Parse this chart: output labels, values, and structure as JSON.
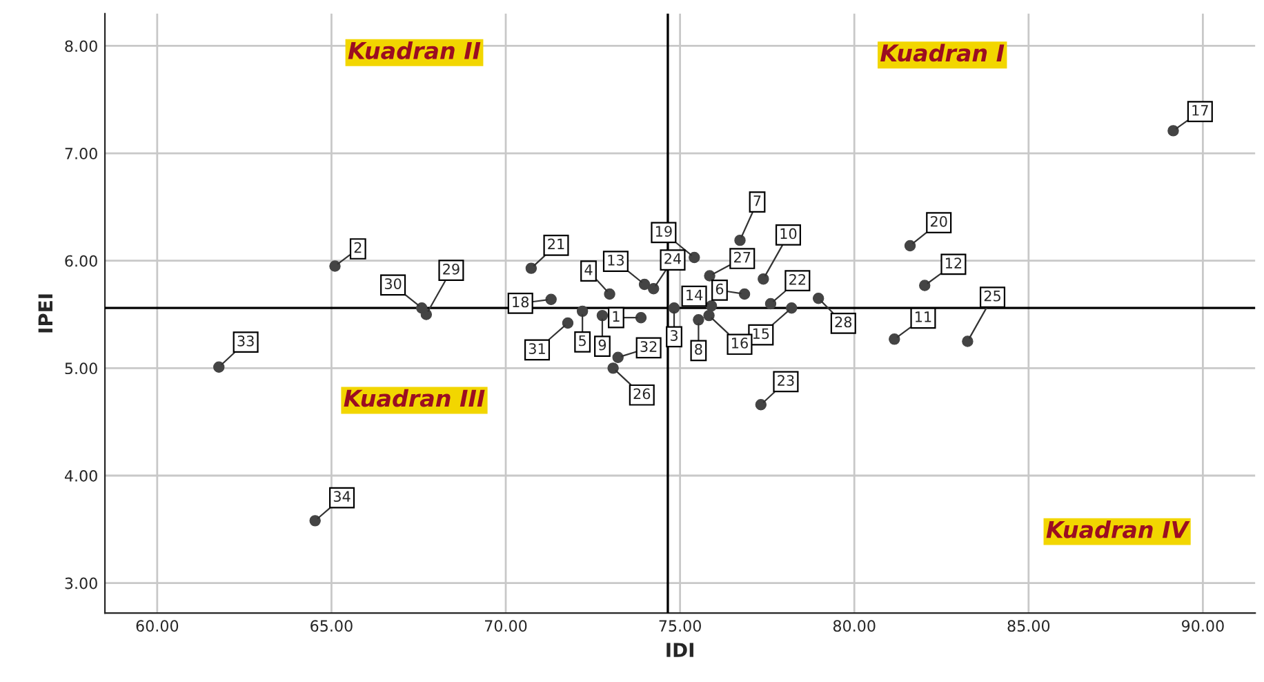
{
  "chart_data": {
    "type": "scatter",
    "xlabel": "IDI",
    "ylabel": "IPEI",
    "x": [
      73.88,
      65.1,
      74.83,
      72.98,
      72.2,
      76.85,
      76.72,
      75.53,
      72.77,
      77.39,
      81.15,
      82.02,
      73.98,
      75.9,
      78.2,
      75.83,
      89.15,
      71.3,
      75.41,
      81.6,
      70.73,
      77.6,
      77.32,
      74.24,
      83.25,
      73.08,
      75.85,
      78.97,
      67.72,
      67.59,
      71.78,
      73.22,
      61.77,
      64.53
    ],
    "values": [
      5.47,
      5.95,
      5.56,
      5.69,
      5.53,
      5.69,
      6.19,
      5.45,
      5.49,
      5.83,
      5.27,
      5.77,
      5.78,
      5.58,
      5.56,
      5.49,
      7.21,
      5.64,
      6.03,
      6.14,
      5.93,
      5.6,
      4.66,
      5.74,
      5.25,
      5.0,
      5.86,
      5.65,
      5.5,
      5.56,
      5.42,
      5.1,
      5.01,
      3.58
    ],
    "color": "#444444",
    "marker": "circle",
    "xlim": [
      58.5,
      91.5
    ],
    "ylim": [
      2.72,
      8.3
    ],
    "xticks": [
      {
        "value": 60,
        "label": "60.00"
      },
      {
        "value": 65,
        "label": "65.00"
      },
      {
        "value": 70,
        "label": "70.00"
      },
      {
        "value": 75,
        "label": "75.00"
      },
      {
        "value": 80,
        "label": "80.00"
      },
      {
        "value": 85,
        "label": "85.00"
      },
      {
        "value": 90,
        "label": "90.00"
      }
    ],
    "yticks": [
      {
        "value": 3,
        "label": "3.00"
      },
      {
        "value": 4,
        "label": "4.00"
      },
      {
        "value": 5,
        "label": "5.00"
      },
      {
        "value": 6,
        "label": "6.00"
      },
      {
        "value": 7,
        "label": "7.00"
      },
      {
        "value": 8,
        "label": "8.00"
      }
    ],
    "grid": true,
    "ref_lines": [
      {
        "axis": "x",
        "value": 74.65,
        "color": "#000000"
      },
      {
        "axis": "y",
        "value": 5.56,
        "color": "#000000"
      }
    ],
    "annotations": [
      "Kuadran I",
      "Kuadran II",
      "Kuadran III",
      "Kuadran IV",
      {
        "text": "1",
        "x": 73.88,
        "y": 5.47
      },
      {
        "text": "2",
        "x": 65.1,
        "y": 5.95
      },
      {
        "text": "3",
        "x": 74.83,
        "y": 5.56
      },
      {
        "text": "4",
        "x": 72.98,
        "y": 5.69
      },
      {
        "text": "5",
        "x": 72.2,
        "y": 5.53
      },
      {
        "text": "6",
        "x": 76.85,
        "y": 5.69
      },
      {
        "text": "7",
        "x": 76.72,
        "y": 6.19
      },
      {
        "text": "8",
        "x": 75.53,
        "y": 5.45
      },
      {
        "text": "9",
        "x": 72.77,
        "y": 5.49
      },
      {
        "text": "10",
        "x": 77.39,
        "y": 5.83
      },
      {
        "text": "11",
        "x": 81.15,
        "y": 5.27
      },
      {
        "text": "12",
        "x": 82.02,
        "y": 5.77
      },
      {
        "text": "13",
        "x": 73.98,
        "y": 5.78
      },
      {
        "text": "14",
        "x": 75.9,
        "y": 5.58
      },
      {
        "text": "15",
        "x": 78.2,
        "y": 5.56
      },
      {
        "text": "16",
        "x": 75.83,
        "y": 5.49
      },
      {
        "text": "17",
        "x": 89.15,
        "y": 7.21
      },
      {
        "text": "18",
        "x": 71.3,
        "y": 5.64
      },
      {
        "text": "19",
        "x": 75.41,
        "y": 6.03
      },
      {
        "text": "20",
        "x": 81.6,
        "y": 6.14
      },
      {
        "text": "21",
        "x": 70.73,
        "y": 5.93
      },
      {
        "text": "22",
        "x": 77.6,
        "y": 5.6
      },
      {
        "text": "23",
        "x": 77.32,
        "y": 4.66
      },
      {
        "text": "24",
        "x": 74.24,
        "y": 5.74
      },
      {
        "text": "25",
        "x": 83.25,
        "y": 5.25
      },
      {
        "text": "26",
        "x": 73.08,
        "y": 5.0
      },
      {
        "text": "27",
        "x": 75.85,
        "y": 5.86
      },
      {
        "text": "28",
        "x": 78.97,
        "y": 5.65
      },
      {
        "text": "29",
        "x": 67.72,
        "y": 5.5
      },
      {
        "text": "30",
        "x": 67.59,
        "y": 5.56
      },
      {
        "text": "31",
        "x": 71.78,
        "y": 5.42
      },
      {
        "text": "32",
        "x": 73.22,
        "y": 5.1
      },
      {
        "text": "33",
        "x": 61.77,
        "y": 5.01
      },
      {
        "text": "34",
        "x": 64.53,
        "y": 3.58
      }
    ]
  }
}
